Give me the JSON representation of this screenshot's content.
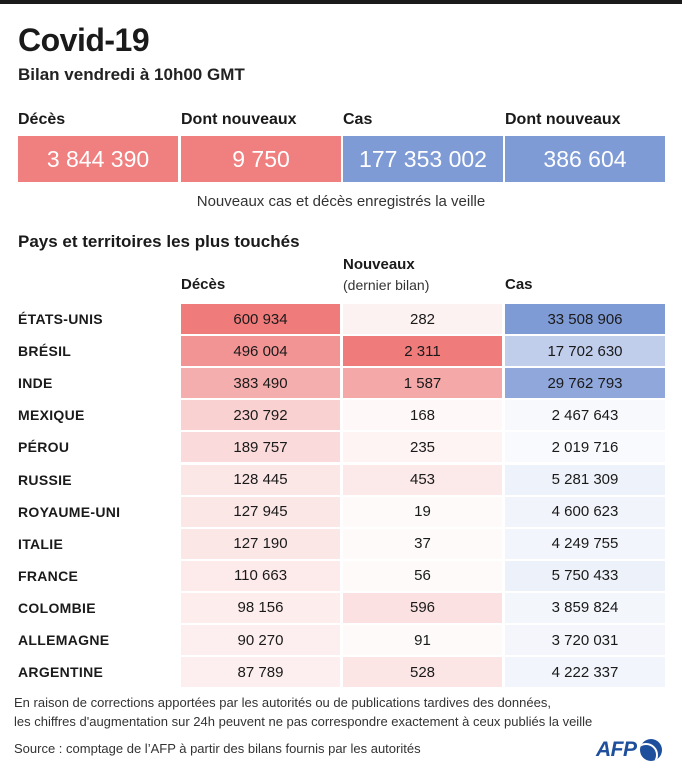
{
  "header": {
    "title": "Covid-19",
    "subtitle": "Bilan vendredi à 10h00 GMT"
  },
  "summary": {
    "items": [
      {
        "label": "Décès",
        "value": "3 844 390",
        "color": "#f07f7f"
      },
      {
        "label": "Dont nouveaux",
        "value": "9 750",
        "color": "#f07f7f"
      },
      {
        "label": "Cas",
        "value": "177 353 002",
        "color": "#7f9bd6"
      },
      {
        "label": "Dont nouveaux",
        "value": "386 604",
        "color": "#7f9bd6"
      }
    ],
    "note": "Nouveaux cas et décès enregistrés la veille"
  },
  "table": {
    "section_title": "Pays et territoires les plus touchés",
    "col_deaths": "Décès",
    "col_new": "Nouveaux",
    "col_new_sub": "(dernier bilan)",
    "col_cases": "Cas"
  },
  "chart_data": {
    "type": "table",
    "title": "Pays et territoires les plus touchés",
    "columns": [
      "Décès",
      "Nouveaux (dernier bilan)",
      "Cas"
    ],
    "rows": [
      {
        "country": "ÉTATS-UNIS",
        "deaths": 600934,
        "deaths_label": "600 934",
        "new": 282,
        "new_label": "282",
        "cases": 33508906,
        "cases_label": "33 508 906"
      },
      {
        "country": "BRÉSIL",
        "deaths": 496004,
        "deaths_label": "496 004",
        "new": 2311,
        "new_label": "2 311",
        "cases": 17702630,
        "cases_label": "17 702 630"
      },
      {
        "country": "INDE",
        "deaths": 383490,
        "deaths_label": "383 490",
        "new": 1587,
        "new_label": "1 587",
        "cases": 29762793,
        "cases_label": "29 762 793"
      },
      {
        "country": "MEXIQUE",
        "deaths": 230792,
        "deaths_label": "230 792",
        "new": 168,
        "new_label": "168",
        "cases": 2467643,
        "cases_label": "2 467 643"
      },
      {
        "country": "PÉROU",
        "deaths": 189757,
        "deaths_label": "189 757",
        "new": 235,
        "new_label": "235",
        "cases": 2019716,
        "cases_label": "2 019 716"
      },
      {
        "country": "RUSSIE",
        "deaths": 128445,
        "deaths_label": "128 445",
        "new": 453,
        "new_label": "453",
        "cases": 5281309,
        "cases_label": "5 281 309"
      },
      {
        "country": "ROYAUME-UNI",
        "deaths": 127945,
        "deaths_label": "127 945",
        "new": 19,
        "new_label": "19",
        "cases": 4600623,
        "cases_label": "4 600 623"
      },
      {
        "country": "ITALIE",
        "deaths": 127190,
        "deaths_label": "127 190",
        "new": 37,
        "new_label": "37",
        "cases": 4249755,
        "cases_label": "4 249 755"
      },
      {
        "country": "FRANCE",
        "deaths": 110663,
        "deaths_label": "110 663",
        "new": 56,
        "new_label": "56",
        "cases": 5750433,
        "cases_label": "5 750 433"
      },
      {
        "country": "COLOMBIE",
        "deaths": 98156,
        "deaths_label": "98 156",
        "new": 596,
        "new_label": "596",
        "cases": 3859824,
        "cases_label": "3 859 824"
      },
      {
        "country": "ALLEMAGNE",
        "deaths": 90270,
        "deaths_label": "90 270",
        "new": 91,
        "new_label": "91",
        "cases": 3720031,
        "cases_label": "3 720 031"
      },
      {
        "country": "ARGENTINE",
        "deaths": 87789,
        "deaths_label": "87 789",
        "new": 528,
        "new_label": "528",
        "cases": 4222337,
        "cases_label": "4 222 337"
      }
    ],
    "colors": {
      "deaths": "#ef7b7b",
      "new": "#ef7b7b",
      "cases": "#7f9bd6"
    }
  },
  "footer": {
    "note_line1": "En raison de corrections apportées par les autorités ou de publications tardives des données,",
    "note_line2": "les chiffres d'augmentation sur 24h peuvent ne pas correspondre exactement à ceux publiés la veille",
    "source": "Source : comptage de l’AFP à partir des bilans fournis par les autorités",
    "logo_text": "AFP"
  }
}
